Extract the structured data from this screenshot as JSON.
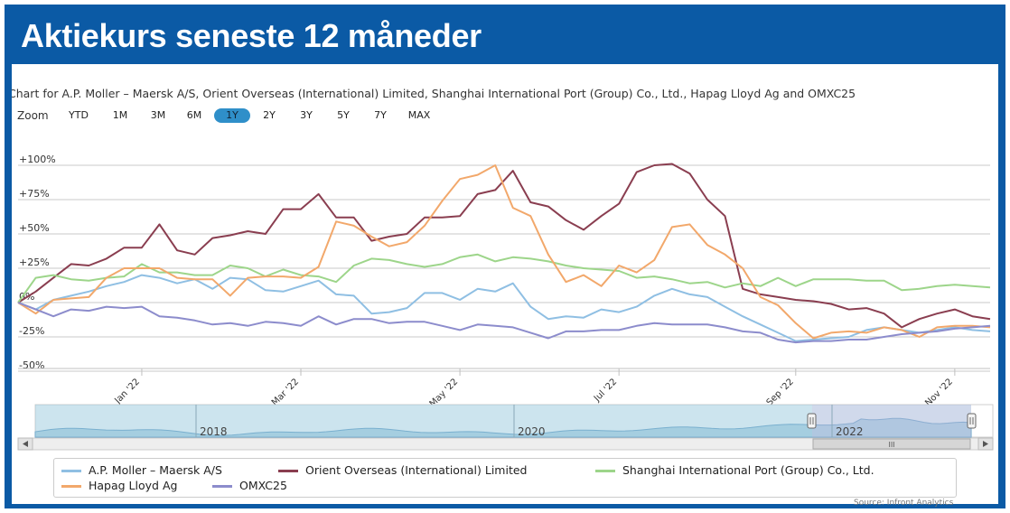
{
  "banner": {
    "title": "Aktiekurs seneste 12 måneder"
  },
  "chart_title": "Chart for A.P. Moller – Maersk A/S, Orient Overseas (International) Limited, Shanghai International Port (Group) Co., Ltd., Hapag Lloyd Ag and OMXC25",
  "zoom": {
    "label": "Zoom",
    "buttons": [
      "YTD",
      "1M",
      "3M",
      "6M",
      "1Y",
      "2Y",
      "3Y",
      "5Y",
      "7Y",
      "MAX"
    ],
    "selected": "1Y"
  },
  "navigator": {
    "labels": [
      "2018",
      "2020",
      "2022"
    ],
    "scroll_grip": "III"
  },
  "source": "Source: Infront Analytics",
  "chart_data": {
    "type": "line",
    "title": "Chart for A.P. Moller – Maersk A/S, Orient Overseas (International) Limited, Shanghai International Port (Group) Co., Ltd., Hapag Lloyd Ag and OMXC25",
    "xlabel": "",
    "ylabel": "",
    "ylim": [
      -50,
      100
    ],
    "y_ticks": [
      "+100%",
      "+75%",
      "+50%",
      "+25%",
      "0%",
      "-25%",
      "-50%"
    ],
    "y_tick_values": [
      100,
      75,
      50,
      25,
      0,
      -25,
      -50
    ],
    "x_ticks": [
      "Jan '22",
      "Mar '22",
      "May '22",
      "Jul '22",
      "Sep '22",
      "Nov '22"
    ],
    "x_tick_weeks": [
      7,
      16,
      25,
      34,
      44,
      53
    ],
    "x_weeks_total": 56,
    "series": [
      {
        "name": "A.P. Moller – Maersk A/S",
        "color": "#8fbfe3",
        "values": [
          0,
          -5,
          2,
          5,
          8,
          12,
          15,
          20,
          18,
          14,
          17,
          10,
          18,
          17,
          9,
          8,
          12,
          16,
          6,
          5,
          -8,
          -7,
          -4,
          7,
          7,
          2,
          10,
          8,
          14,
          -3,
          -12,
          -10,
          -11,
          -5,
          -7,
          -3,
          5,
          10,
          6,
          4,
          -3,
          -10,
          -16,
          -22,
          -28,
          -27,
          -26,
          -25,
          -20,
          -18,
          -20,
          -22,
          -20,
          -18,
          -20,
          -21
        ]
      },
      {
        "name": "Orient Overseas (International) Limited",
        "color": "#8a3e50",
        "values": [
          0,
          8,
          18,
          28,
          27,
          32,
          40,
          40,
          57,
          38,
          35,
          47,
          49,
          52,
          50,
          68,
          68,
          79,
          62,
          62,
          45,
          48,
          50,
          62,
          62,
          63,
          79,
          82,
          96,
          73,
          70,
          60,
          53,
          63,
          72,
          95,
          100,
          101,
          94,
          75,
          63,
          10,
          6,
          4,
          2,
          1,
          -1,
          -5,
          -4,
          -8,
          -18,
          -12,
          -8,
          -5,
          -10,
          -12
        ]
      },
      {
        "name": "Shanghai International Port (Group) Co., Ltd.",
        "color": "#9dd58a",
        "values": [
          0,
          18,
          20,
          17,
          16,
          18,
          19,
          28,
          22,
          22,
          20,
          20,
          27,
          25,
          19,
          24,
          20,
          19,
          15,
          27,
          32,
          31,
          28,
          26,
          28,
          33,
          35,
          30,
          33,
          32,
          30,
          27,
          25,
          24,
          23,
          18,
          19,
          17,
          14,
          15,
          11,
          14,
          12,
          18,
          12,
          17,
          17,
          17,
          16,
          16,
          9,
          10,
          12,
          13,
          12,
          11
        ]
      },
      {
        "name": "Hapag Lloyd Ag",
        "color": "#f2a86b",
        "values": [
          0,
          -8,
          2,
          3,
          4,
          18,
          25,
          25,
          25,
          18,
          17,
          17,
          5,
          18,
          19,
          19,
          18,
          26,
          59,
          56,
          48,
          41,
          44,
          56,
          74,
          90,
          93,
          100,
          69,
          63,
          35,
          15,
          20,
          12,
          27,
          22,
          31,
          55,
          57,
          42,
          35,
          25,
          4,
          -2,
          -15,
          -26,
          -22,
          -21,
          -22,
          -18,
          -20,
          -25,
          -18,
          -17,
          -17,
          -18
        ]
      },
      {
        "name": "OMXC25",
        "color": "#8c8ccc",
        "values": [
          0,
          -5,
          -10,
          -5,
          -6,
          -3,
          -4,
          -3,
          -10,
          -11,
          -13,
          -16,
          -15,
          -17,
          -14,
          -15,
          -17,
          -10,
          -16,
          -12,
          -12,
          -15,
          -14,
          -14,
          -17,
          -20,
          -16,
          -17,
          -18,
          -22,
          -26,
          -21,
          -21,
          -20,
          -20,
          -17,
          -15,
          -16,
          -16,
          -16,
          -18,
          -21,
          -22,
          -27,
          -29,
          -28,
          -28,
          -27,
          -27,
          -25,
          -23,
          -22,
          -21,
          -19,
          -18,
          -17
        ]
      }
    ]
  }
}
